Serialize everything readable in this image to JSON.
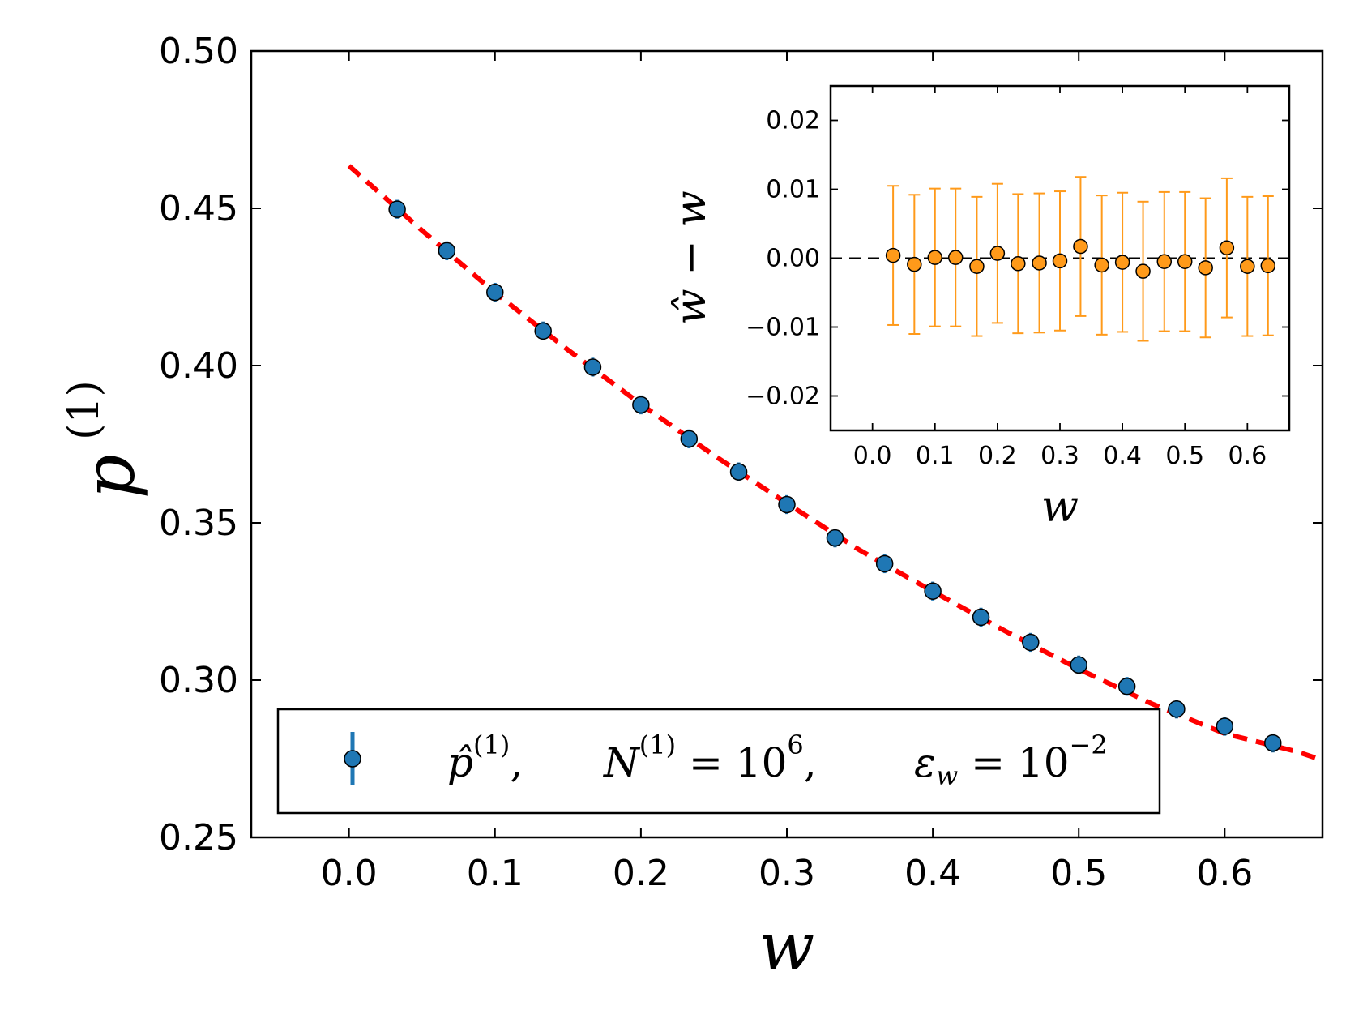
{
  "chart_data": [
    {
      "type": "scatter",
      "panel": "main",
      "xlabel": "w",
      "ylabel": "p(1)",
      "xlim": [
        -0.067,
        0.667
      ],
      "ylim": [
        0.25,
        0.5
      ],
      "xticks": [
        "0.0",
        "0.1",
        "0.2",
        "0.3",
        "0.4",
        "0.5",
        "0.6"
      ],
      "yticks": [
        "0.25",
        "0.30",
        "0.35",
        "0.40",
        "0.45",
        "0.50"
      ],
      "grid": false,
      "legend_position": "bottom-left",
      "legend": {
        "label": "p̂(1), N(1) = 10^6, ε_w = 10^-2",
        "label_parts": {
          "p_symbol": "p̂",
          "p_sup": "(1)",
          "n_symbol": "N",
          "n_sup": "(1)",
          "n_eq": " = 10",
          "n_exp": "6",
          "eps_symbol": "ε",
          "eps_sub": "w",
          "eps_eq": " = 10",
          "eps_exp": "−2"
        }
      },
      "x": [
        0.033,
        0.067,
        0.1,
        0.133,
        0.167,
        0.2,
        0.233,
        0.267,
        0.3,
        0.333,
        0.367,
        0.4,
        0.433,
        0.467,
        0.5,
        0.533,
        0.567,
        0.6,
        0.633
      ],
      "y": [
        0.4497,
        0.4365,
        0.4233,
        0.411,
        0.3995,
        0.3875,
        0.3767,
        0.3662,
        0.3558,
        0.3452,
        0.337,
        0.3283,
        0.32,
        0.312,
        0.3048,
        0.298,
        0.2908,
        0.2853,
        0.28
      ],
      "yerr": [
        0.003,
        0.003,
        0.003,
        0.003,
        0.003,
        0.003,
        0.003,
        0.003,
        0.003,
        0.003,
        0.003,
        0.003,
        0.003,
        0.003,
        0.003,
        0.003,
        0.003,
        0.003,
        0.003
      ],
      "fit_curve": {
        "style": "red dashed",
        "x": [
          0.0,
          0.05,
          0.1,
          0.15,
          0.2,
          0.25,
          0.3,
          0.35,
          0.4,
          0.45,
          0.5,
          0.55,
          0.6,
          0.65,
          0.667
        ],
        "y": [
          0.4635,
          0.443,
          0.4232,
          0.405,
          0.3877,
          0.3715,
          0.3562,
          0.3413,
          0.3282,
          0.3155,
          0.3035,
          0.2925,
          0.283,
          0.2772,
          0.2745
        ]
      },
      "colors": {
        "markers": "#1f77b4",
        "fit": "#ff0000"
      }
    },
    {
      "type": "scatter",
      "panel": "inset",
      "xlabel": "w",
      "ylabel": "ŵ − w",
      "xlim": [
        -0.067,
        0.667
      ],
      "ylim": [
        -0.025,
        0.025
      ],
      "xticks": [
        "0.0",
        "0.1",
        "0.2",
        "0.3",
        "0.4",
        "0.5",
        "0.6"
      ],
      "yticks": [
        "−0.02",
        "−0.01",
        "0.00",
        "0.01",
        "0.02"
      ],
      "grid": false,
      "reference_line": {
        "y": 0.0,
        "style": "black dashed"
      },
      "x": [
        0.033,
        0.067,
        0.1,
        0.133,
        0.167,
        0.2,
        0.233,
        0.267,
        0.3,
        0.333,
        0.367,
        0.4,
        0.433,
        0.467,
        0.5,
        0.533,
        0.567,
        0.6,
        0.633
      ],
      "y": [
        0.0004,
        -0.0009,
        0.0001,
        0.0001,
        -0.0012,
        0.0007,
        -0.0008,
        -0.0007,
        -0.0004,
        0.0017,
        -0.001,
        -0.0006,
        -0.0019,
        -0.0005,
        -0.0005,
        -0.0014,
        0.0015,
        -0.0012,
        -0.0011
      ],
      "yerr": [
        0.0101,
        0.0101,
        0.01,
        0.01,
        0.0101,
        0.0101,
        0.0101,
        0.0101,
        0.0101,
        0.0101,
        0.0101,
        0.0101,
        0.0101,
        0.0101,
        0.0101,
        0.0101,
        0.0101,
        0.0101,
        0.0101
      ],
      "colors": {
        "markers": "#ff9a1a",
        "errorbars": "#ff9a1a"
      }
    }
  ]
}
